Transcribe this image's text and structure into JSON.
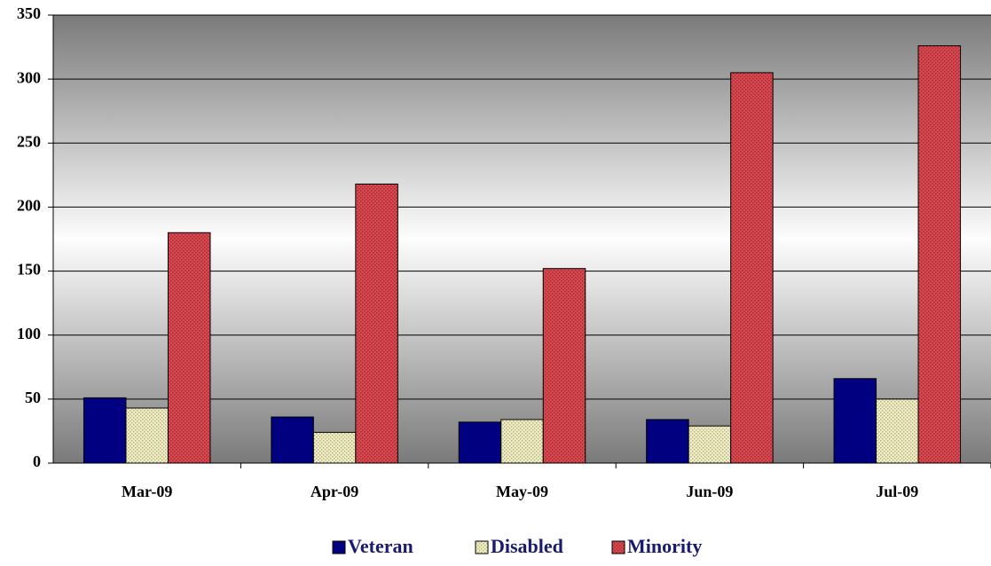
{
  "chart_data": {
    "type": "bar",
    "categories": [
      "Mar-09",
      "Apr-09",
      "May-09",
      "Jun-09",
      "Jul-09"
    ],
    "series": [
      {
        "name": "Veteran",
        "color": "#000080",
        "values": [
          51,
          36,
          32,
          34,
          66
        ]
      },
      {
        "name": "Disabled",
        "color": "#f3efc4",
        "values": [
          43,
          24,
          34,
          29,
          50
        ]
      },
      {
        "name": "Minority",
        "color": "#d9494f",
        "values": [
          180,
          218,
          152,
          305,
          326
        ]
      }
    ],
    "ylim": [
      0,
      350
    ],
    "yticks": [
      0,
      50,
      100,
      150,
      200,
      250,
      300,
      350
    ],
    "grid": true,
    "legend": "bottom"
  }
}
